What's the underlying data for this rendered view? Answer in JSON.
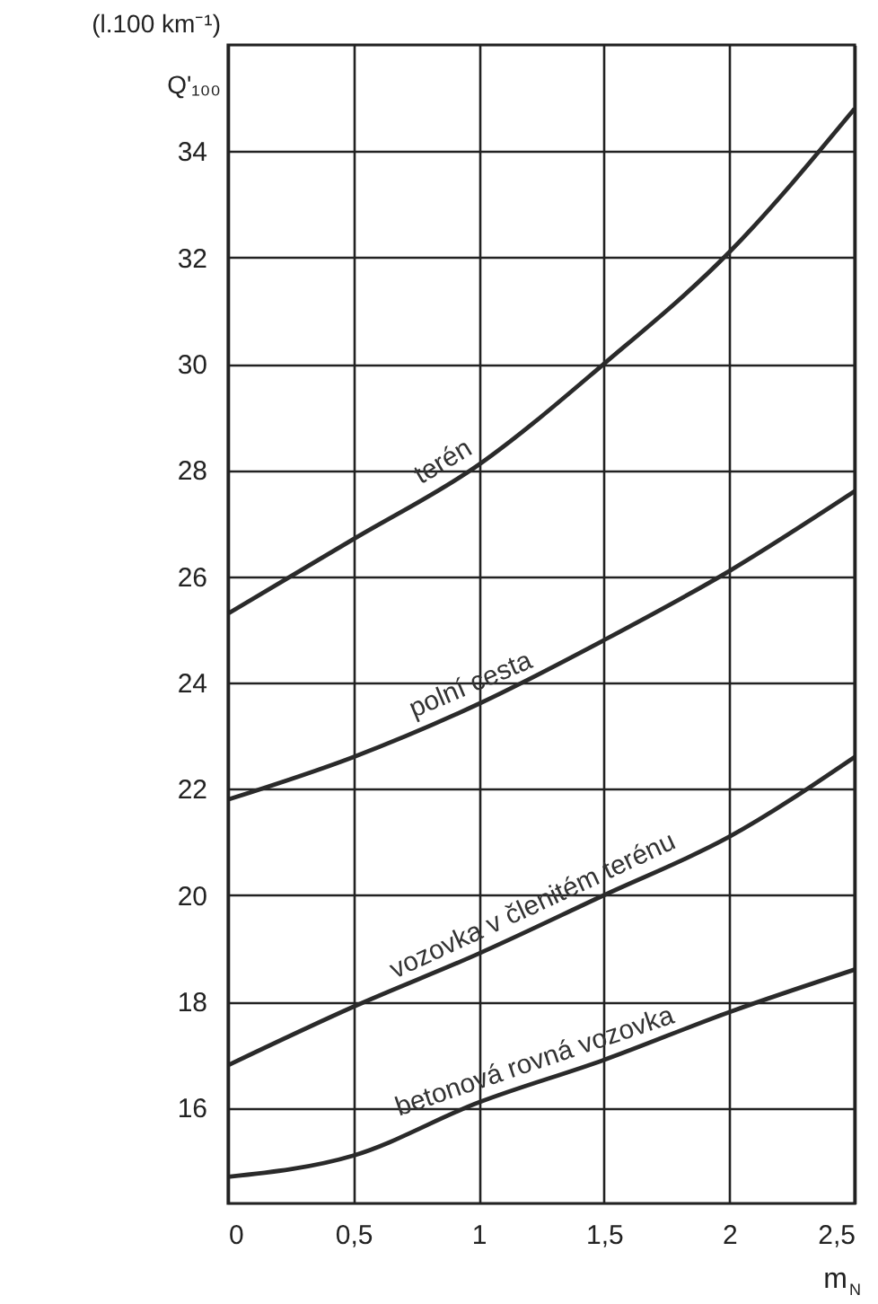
{
  "chart_data": {
    "type": "line",
    "ylabel": "(l.100 km⁻¹) Q'₁₀₀",
    "xlabel": "m$_{N}$",
    "x": [
      0,
      0.5,
      1,
      1.5,
      2,
      2.5
    ],
    "series": [
      {
        "name": "terén",
        "color": "#2a2a2a",
        "values": [
          25.3,
          26.7,
          28.1,
          30.0,
          32.1,
          34.8
        ]
      },
      {
        "name": "polní cesta",
        "color": "#2a2a2a",
        "values": [
          21.8,
          22.6,
          23.6,
          24.8,
          26.1,
          27.6
        ]
      },
      {
        "name": "vozovka v členitém terénu",
        "color": "#2a2a2a",
        "values": [
          16.8,
          17.9,
          18.9,
          20.0,
          21.1,
          22.6
        ]
      },
      {
        "name": "betonová rovná vozovka",
        "color": "#2a2a2a",
        "values": [
          14.7,
          15.1,
          16.1,
          16.9,
          17.8,
          18.6
        ]
      }
    ],
    "xlim": [
      0,
      2.5
    ],
    "ylim": [
      14.2,
      36
    ],
    "xticks": [
      0,
      {
        "value": 0.5,
        "label": "0,5"
      },
      1,
      {
        "value": 1.5,
        "label": "1,5"
      },
      2,
      {
        "value": 2.5,
        "label": "2,5"
      }
    ],
    "yticks": [
      16,
      18,
      20,
      22,
      24,
      26,
      28,
      30,
      32,
      34
    ],
    "grid": true,
    "marker": "none",
    "line_style": "solid"
  }
}
